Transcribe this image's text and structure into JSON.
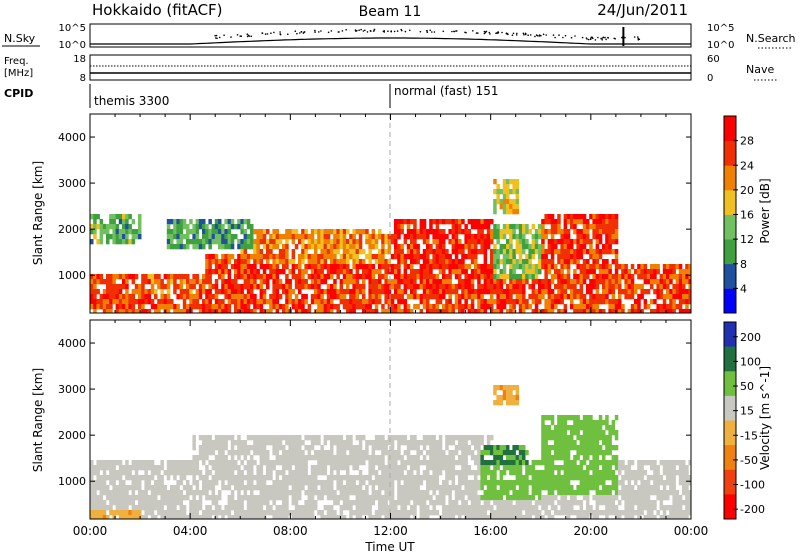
{
  "header": {
    "station": "Hokkaido (fitACF)",
    "beam": "Beam 11",
    "date": "24/Jun/2011"
  },
  "sky_panel": {
    "label": "N.Sky",
    "right_label": "N.Search",
    "left_ticks": [
      "10^5",
      "10^0"
    ],
    "right_ticks": [
      "10^5",
      "10^0"
    ]
  },
  "freq_panel": {
    "label_line1": "Freq.",
    "label_line2": "[MHz]",
    "right_label": "Nave",
    "left_ticks": [
      "18",
      "8"
    ],
    "right_ticks": [
      "60",
      "0"
    ]
  },
  "cpid_panel": {
    "label": "CPID",
    "segments": [
      {
        "label": "themis 3300",
        "start_hour": 0
      },
      {
        "label": "normal (fast) 151",
        "start_hour": 12
      }
    ]
  },
  "chart_data": [
    {
      "type": "heatmap",
      "name": "power",
      "xlabel": "",
      "ylabel": "Slant Range [km]",
      "xlim": [
        0,
        24
      ],
      "ylim": [
        180,
        4500
      ],
      "y_ticks": [
        1000,
        2000,
        3000,
        4000
      ],
      "colorbar": {
        "label": "Power [dB]",
        "min": 0,
        "max": 32,
        "ticks": [
          4,
          8,
          12,
          16,
          20,
          24,
          28
        ]
      },
      "echo_regions": [
        {
          "t0": 0.0,
          "t1": 24.0,
          "r0": 200,
          "r1": 620,
          "value": 26
        },
        {
          "t0": 4.5,
          "t1": 18.0,
          "r0": 620,
          "r1": 1500,
          "value": 27
        },
        {
          "t0": 0.0,
          "t1": 4.5,
          "r0": 600,
          "r1": 1100,
          "value": 24
        },
        {
          "t0": 6.0,
          "t1": 12.0,
          "r0": 1300,
          "r1": 2100,
          "value": 22
        },
        {
          "t0": 12.0,
          "t1": 16.0,
          "r0": 1200,
          "r1": 2300,
          "value": 28
        },
        {
          "t0": 16.0,
          "t1": 18.0,
          "r0": 1000,
          "r1": 2200,
          "value": 14
        },
        {
          "t0": 18.0,
          "t1": 21.0,
          "r0": 600,
          "r1": 2400,
          "value": 26
        },
        {
          "t0": 21.0,
          "t1": 24.0,
          "r0": 300,
          "r1": 1300,
          "value": 26
        },
        {
          "t0": 0.0,
          "t1": 2.0,
          "r0": 1700,
          "r1": 2400,
          "value": 12
        },
        {
          "t0": 3.0,
          "t1": 6.5,
          "r0": 1600,
          "r1": 2300,
          "value": 10
        },
        {
          "t0": 16.0,
          "t1": 17.0,
          "r0": 2400,
          "r1": 3100,
          "value": 18
        }
      ]
    },
    {
      "type": "heatmap",
      "name": "velocity",
      "xlabel": "Time UT",
      "ylabel": "Slant Range [km]",
      "xlim": [
        0,
        24
      ],
      "ylim": [
        180,
        4500
      ],
      "x_ticks": [
        "00:00",
        "04:00",
        "08:00",
        "12:00",
        "16:00",
        "20:00",
        "00:00"
      ],
      "y_ticks": [
        1000,
        2000,
        3000,
        4000
      ],
      "colorbar": {
        "label": "Velocity [m s^-1]",
        "labels": [
          "200",
          "100",
          "50",
          "15",
          "-15",
          "-50",
          "-100",
          "-200"
        ]
      },
      "echo_regions": [
        {
          "t0": 0.0,
          "t1": 24.0,
          "r0": 200,
          "r1": 1500,
          "value": 0
        },
        {
          "t0": 4.0,
          "t1": 16.0,
          "r0": 1300,
          "r1": 2100,
          "value": 0
        },
        {
          "t0": 15.5,
          "t1": 18.0,
          "r0": 700,
          "r1": 1500,
          "value": 40
        },
        {
          "t0": 15.5,
          "t1": 17.5,
          "r0": 1400,
          "r1": 1800,
          "value": 80
        },
        {
          "t0": 18.0,
          "t1": 21.0,
          "r0": 800,
          "r1": 2500,
          "value": 30
        },
        {
          "t0": 0.0,
          "t1": 2.0,
          "r0": 200,
          "r1": 400,
          "value": -40
        },
        {
          "t0": 16.0,
          "t1": 17.0,
          "r0": 2700,
          "r1": 3100,
          "value": -40
        }
      ]
    }
  ],
  "colors": {
    "power_scale": [
      "#0000ff",
      "#2050a0",
      "#40a040",
      "#70c060",
      "#f0c020",
      "#f08000",
      "#f03000",
      "#ff0000"
    ],
    "velocity_scale": [
      "#2030b0",
      "#207040",
      "#70c040",
      "#c8c8c0",
      "#f0b040",
      "#f08010",
      "#f04010",
      "#ff0000"
    ]
  }
}
